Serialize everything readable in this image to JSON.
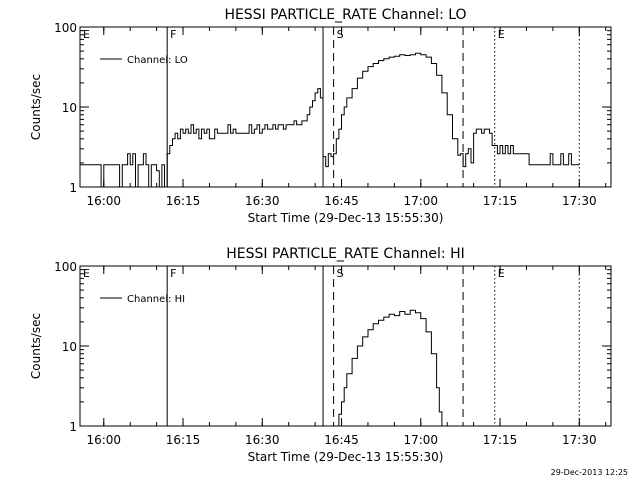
{
  "footer_timestamp": "29-Dec-2013 12:25",
  "chart_data": [
    {
      "type": "line",
      "title": "HESSI PARTICLE_RATE Channel: LO",
      "xlabel": "Start Time (29-Dec-13 15:55:30)",
      "ylabel": "Counts/sec",
      "y_scale": "log",
      "ylim": [
        1,
        100
      ],
      "y_ticks": [
        "1",
        "10",
        "100"
      ],
      "xlim": [
        "15:55:30",
        "17:36:00"
      ],
      "x_ticks": [
        "16:00",
        "16:15",
        "16:30",
        "16:45",
        "17:00",
        "17:15",
        "17:30"
      ],
      "legend": {
        "label": "Channel: LO",
        "placement": "top-left"
      },
      "event_markers": [
        {
          "time": "15:55:30",
          "label": "E",
          "style": "dotted"
        },
        {
          "time": "16:12:00",
          "label": "F",
          "style": "solid"
        },
        {
          "time": "16:41:30",
          "label": "",
          "style": "solid"
        },
        {
          "time": "16:43:30",
          "label": "S",
          "style": "dashed"
        },
        {
          "time": "17:08:00",
          "label": "",
          "style": "dashed"
        },
        {
          "time": "17:14:00",
          "label": "E",
          "style": "dotted"
        },
        {
          "time": "17:30:00",
          "label": "",
          "style": "dotted"
        }
      ],
      "series": [
        {
          "name": "Channel: LO",
          "points": [
            [
              "15:55:30",
              1.9
            ],
            [
              "15:59:00",
              1.9
            ],
            [
              "15:59:30",
              1.0
            ],
            [
              "16:00:00",
              1.9
            ],
            [
              "16:02:30",
              1.9
            ],
            [
              "16:03:00",
              1.0
            ],
            [
              "16:03:30",
              1.9
            ],
            [
              "16:04:00",
              1.9
            ],
            [
              "16:04:30",
              2.6
            ],
            [
              "16:05:00",
              1.9
            ],
            [
              "16:05:30",
              2.6
            ],
            [
              "16:06:00",
              1.0
            ],
            [
              "16:06:30",
              1.9
            ],
            [
              "16:07:00",
              1.9
            ],
            [
              "16:07:30",
              2.6
            ],
            [
              "16:08:00",
              1.9
            ],
            [
              "16:08:30",
              1.0
            ],
            [
              "16:09:00",
              1.9
            ],
            [
              "16:09:30",
              1.9
            ],
            [
              "16:10:00",
              1.6
            ],
            [
              "16:10:30",
              1.0
            ],
            [
              "16:11:00",
              1.9
            ],
            [
              "16:11:30",
              1.0
            ],
            [
              "16:12:00",
              2.6
            ],
            [
              "16:12:30",
              3.3
            ],
            [
              "16:13:00",
              4.0
            ],
            [
              "16:13:30",
              4.7
            ],
            [
              "16:14:00",
              4.0
            ],
            [
              "16:14:30",
              5.3
            ],
            [
              "16:15:00",
              4.7
            ],
            [
              "16:15:30",
              5.3
            ],
            [
              "16:16:00",
              4.7
            ],
            [
              "16:16:30",
              6.0
            ],
            [
              "16:17:00",
              4.7
            ],
            [
              "16:17:30",
              5.3
            ],
            [
              "16:18:00",
              4.0
            ],
            [
              "16:18:30",
              5.3
            ],
            [
              "16:19:00",
              4.7
            ],
            [
              "16:19:30",
              5.3
            ],
            [
              "16:20:00",
              4.0
            ],
            [
              "16:20:30",
              4.0
            ],
            [
              "16:21:00",
              5.3
            ],
            [
              "16:21:30",
              4.7
            ],
            [
              "16:22:00",
              4.7
            ],
            [
              "16:22:30",
              4.7
            ],
            [
              "16:23:00",
              4.7
            ],
            [
              "16:23:30",
              6.0
            ],
            [
              "16:24:00",
              4.7
            ],
            [
              "16:24:30",
              5.3
            ],
            [
              "16:25:00",
              4.7
            ],
            [
              "16:25:30",
              4.7
            ],
            [
              "16:26:00",
              4.7
            ],
            [
              "16:26:30",
              4.7
            ],
            [
              "16:27:00",
              4.7
            ],
            [
              "16:27:30",
              6.0
            ],
            [
              "16:28:00",
              4.7
            ],
            [
              "16:28:30",
              5.3
            ],
            [
              "16:29:00",
              6.0
            ],
            [
              "16:29:30",
              4.7
            ],
            [
              "16:30:00",
              5.3
            ],
            [
              "16:30:30",
              6.0
            ],
            [
              "16:31:00",
              5.3
            ],
            [
              "16:31:30",
              5.3
            ],
            [
              "16:32:00",
              6.0
            ],
            [
              "16:32:30",
              5.3
            ],
            [
              "16:33:00",
              6.0
            ],
            [
              "16:33:30",
              6.0
            ],
            [
              "16:34:00",
              5.3
            ],
            [
              "16:34:30",
              6.0
            ],
            [
              "16:35:00",
              6.0
            ],
            [
              "16:35:30",
              6.0
            ],
            [
              "16:36:00",
              6.7
            ],
            [
              "16:36:30",
              6.0
            ],
            [
              "16:37:00",
              6.0
            ],
            [
              "16:37:30",
              6.7
            ],
            [
              "16:38:00",
              6.7
            ],
            [
              "16:38:30",
              8.0
            ],
            [
              "16:39:00",
              10.0
            ],
            [
              "16:39:30",
              12.0
            ],
            [
              "16:40:00",
              15.0
            ],
            [
              "16:40:30",
              17.0
            ],
            [
              "16:41:00",
              13.0
            ],
            [
              "16:41:30",
              2.4
            ],
            [
              "16:42:00",
              1.8
            ],
            [
              "16:42:30",
              2.6
            ],
            [
              "16:43:00",
              2.4
            ],
            [
              "16:43:30",
              2.6
            ],
            [
              "16:44:00",
              4.0
            ],
            [
              "16:44:30",
              5.3
            ],
            [
              "16:45:00",
              8.0
            ],
            [
              "16:45:30",
              10.0
            ],
            [
              "16:46:00",
              13.0
            ],
            [
              "16:47:00",
              17.0
            ],
            [
              "16:48:00",
              23.0
            ],
            [
              "16:49:00",
              28.0
            ],
            [
              "16:50:00",
              32.0
            ],
            [
              "16:51:00",
              35.0
            ],
            [
              "16:52:00",
              38.0
            ],
            [
              "16:53:00",
              40.0
            ],
            [
              "16:54:00",
              42.0
            ],
            [
              "16:55:00",
              43.0
            ],
            [
              "16:56:00",
              45.0
            ],
            [
              "16:57:00",
              44.0
            ],
            [
              "16:58:00",
              45.0
            ],
            [
              "16:59:00",
              47.0
            ],
            [
              "17:00:00",
              45.0
            ],
            [
              "17:01:00",
              42.0
            ],
            [
              "17:02:00",
              35.0
            ],
            [
              "17:03:00",
              25.0
            ],
            [
              "17:04:00",
              15.0
            ],
            [
              "17:05:00",
              8.0
            ],
            [
              "17:06:00",
              4.0
            ],
            [
              "17:07:00",
              2.5
            ],
            [
              "17:07:30",
              2.6
            ],
            [
              "17:08:00",
              1.8
            ],
            [
              "17:08:30",
              2.6
            ],
            [
              "17:09:00",
              3.0
            ],
            [
              "17:09:30",
              2.0
            ],
            [
              "17:10:00",
              4.7
            ],
            [
              "17:10:30",
              5.3
            ],
            [
              "17:11:00",
              5.3
            ],
            [
              "17:11:30",
              4.7
            ],
            [
              "17:12:00",
              5.3
            ],
            [
              "17:12:30",
              5.3
            ],
            [
              "17:13:00",
              4.7
            ],
            [
              "17:13:30",
              3.3
            ],
            [
              "17:14:00",
              3.3
            ],
            [
              "17:14:30",
              2.6
            ],
            [
              "17:15:00",
              3.3
            ],
            [
              "17:15:30",
              2.6
            ],
            [
              "17:16:00",
              3.3
            ],
            [
              "17:16:30",
              2.6
            ],
            [
              "17:17:00",
              3.3
            ],
            [
              "17:17:30",
              2.6
            ],
            [
              "17:18:00",
              2.6
            ],
            [
              "17:19:00",
              2.6
            ],
            [
              "17:20:00",
              2.6
            ],
            [
              "17:20:30",
              1.9
            ],
            [
              "17:21:00",
              1.9
            ],
            [
              "17:22:00",
              1.9
            ],
            [
              "17:23:00",
              1.9
            ],
            [
              "17:24:00",
              1.9
            ],
            [
              "17:24:30",
              2.6
            ],
            [
              "17:25:00",
              1.9
            ],
            [
              "17:25:30",
              1.9
            ],
            [
              "17:26:00",
              1.9
            ],
            [
              "17:26:30",
              2.6
            ],
            [
              "17:27:00",
              1.9
            ],
            [
              "17:27:30",
              1.9
            ],
            [
              "17:28:00",
              2.6
            ],
            [
              "17:28:30",
              1.9
            ],
            [
              "17:29:00",
              1.9
            ],
            [
              "17:29:30",
              1.9
            ],
            [
              "17:30:00",
              1.9
            ]
          ]
        }
      ]
    },
    {
      "type": "line",
      "title": "HESSI PARTICLE_RATE Channel: HI",
      "xlabel": "Start Time (29-Dec-13 15:55:30)",
      "ylabel": "Counts/sec",
      "y_scale": "log",
      "ylim": [
        1,
        100
      ],
      "y_ticks": [
        "1",
        "10",
        "100"
      ],
      "xlim": [
        "15:55:30",
        "17:36:00"
      ],
      "x_ticks": [
        "16:00",
        "16:15",
        "16:30",
        "16:45",
        "17:00",
        "17:15",
        "17:30"
      ],
      "legend": {
        "label": "Channel: HI",
        "placement": "top-left"
      },
      "event_markers": [
        {
          "time": "15:55:30",
          "label": "E",
          "style": "dotted"
        },
        {
          "time": "16:12:00",
          "label": "F",
          "style": "solid"
        },
        {
          "time": "16:41:30",
          "label": "",
          "style": "solid"
        },
        {
          "time": "16:43:30",
          "label": "S",
          "style": "dashed"
        },
        {
          "time": "17:08:00",
          "label": "",
          "style": "dashed"
        },
        {
          "time": "17:14:00",
          "label": "E",
          "style": "dotted"
        },
        {
          "time": "17:30:00",
          "label": "",
          "style": "dotted"
        }
      ],
      "series": [
        {
          "name": "Channel: HI",
          "points": [
            [
              "16:44:00",
              1.0
            ],
            [
              "16:44:30",
              1.4
            ],
            [
              "16:45:00",
              2.0
            ],
            [
              "16:45:30",
              3.0
            ],
            [
              "16:46:00",
              4.5
            ],
            [
              "16:47:00",
              7.0
            ],
            [
              "16:48:00",
              10.0
            ],
            [
              "16:49:00",
              13.0
            ],
            [
              "16:50:00",
              16.0
            ],
            [
              "16:51:00",
              19.0
            ],
            [
              "16:52:00",
              21.0
            ],
            [
              "16:53:00",
              23.0
            ],
            [
              "16:54:00",
              25.0
            ],
            [
              "16:55:00",
              24.0
            ],
            [
              "16:56:00",
              27.0
            ],
            [
              "16:57:00",
              25.0
            ],
            [
              "16:58:00",
              28.0
            ],
            [
              "16:59:00",
              26.0
            ],
            [
              "17:00:00",
              22.0
            ],
            [
              "17:01:00",
              15.0
            ],
            [
              "17:02:00",
              8.0
            ],
            [
              "17:03:00",
              3.0
            ],
            [
              "17:03:30",
              1.5
            ],
            [
              "17:04:00",
              1.0
            ]
          ]
        }
      ]
    }
  ]
}
